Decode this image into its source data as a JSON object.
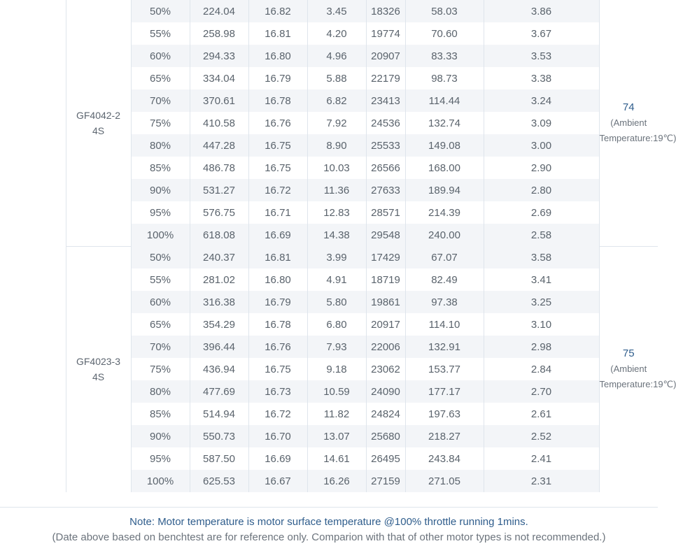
{
  "motors": [
    {
      "name_line1": "GF4042-2",
      "name_line2": "4S",
      "temp_value": "74",
      "temp_note_line1": "(Ambient",
      "temp_note_line2": "Temperature:19℃)",
      "rows": [
        [
          "50%",
          "224.04",
          "16.82",
          "3.45",
          "18326",
          "58.03",
          "3.86"
        ],
        [
          "55%",
          "258.98",
          "16.81",
          "4.20",
          "19774",
          "70.60",
          "3.67"
        ],
        [
          "60%",
          "294.33",
          "16.80",
          "4.96",
          "20907",
          "83.33",
          "3.53"
        ],
        [
          "65%",
          "334.04",
          "16.79",
          "5.88",
          "22179",
          "98.73",
          "3.38"
        ],
        [
          "70%",
          "370.61",
          "16.78",
          "6.82",
          "23413",
          "114.44",
          "3.24"
        ],
        [
          "75%",
          "410.58",
          "16.76",
          "7.92",
          "24536",
          "132.74",
          "3.09"
        ],
        [
          "80%",
          "447.28",
          "16.75",
          "8.90",
          "25533",
          "149.08",
          "3.00"
        ],
        [
          "85%",
          "486.78",
          "16.75",
          "10.03",
          "26566",
          "168.00",
          "2.90"
        ],
        [
          "90%",
          "531.27",
          "16.72",
          "11.36",
          "27633",
          "189.94",
          "2.80"
        ],
        [
          "95%",
          "576.75",
          "16.71",
          "12.83",
          "28571",
          "214.39",
          "2.69"
        ],
        [
          "100%",
          "618.08",
          "16.69",
          "14.38",
          "29548",
          "240.00",
          "2.58"
        ]
      ]
    },
    {
      "name_line1": "GF4023-3",
      "name_line2": "4S",
      "temp_value": "75",
      "temp_note_line1": "(Ambient",
      "temp_note_line2": "Temperature:19℃)",
      "rows": [
        [
          "50%",
          "240.37",
          "16.81",
          "3.99",
          "17429",
          "67.07",
          "3.58"
        ],
        [
          "55%",
          "281.02",
          "16.80",
          "4.91",
          "18719",
          "82.49",
          "3.41"
        ],
        [
          "60%",
          "316.38",
          "16.79",
          "5.80",
          "19861",
          "97.38",
          "3.25"
        ],
        [
          "65%",
          "354.29",
          "16.78",
          "6.80",
          "20917",
          "114.10",
          "3.10"
        ],
        [
          "70%",
          "396.44",
          "16.76",
          "7.93",
          "22006",
          "132.91",
          "2.98"
        ],
        [
          "75%",
          "436.94",
          "16.75",
          "9.18",
          "23062",
          "153.77",
          "2.84"
        ],
        [
          "80%",
          "477.69",
          "16.73",
          "10.59",
          "24090",
          "177.17",
          "2.70"
        ],
        [
          "85%",
          "514.94",
          "16.72",
          "11.82",
          "24824",
          "197.63",
          "2.61"
        ],
        [
          "90%",
          "550.73",
          "16.70",
          "13.07",
          "25680",
          "218.27",
          "2.52"
        ],
        [
          "95%",
          "587.50",
          "16.69",
          "14.61",
          "26495",
          "243.84",
          "2.41"
        ],
        [
          "100%",
          "625.53",
          "16.67",
          "16.26",
          "27159",
          "271.05",
          "2.31"
        ]
      ]
    }
  ],
  "notes": {
    "line1": "Note: Motor temperature is motor surface temperature @100% throttle running 1mins.",
    "line2": "(Date above based on benchtest are for reference only. Comparion with that of other motor types is not recommended.)"
  },
  "colors": {
    "shade_row": "#f3f5f8",
    "border": "#dfe5ec",
    "accent_blue": "#2f5d8c",
    "text": "#5a636c"
  }
}
